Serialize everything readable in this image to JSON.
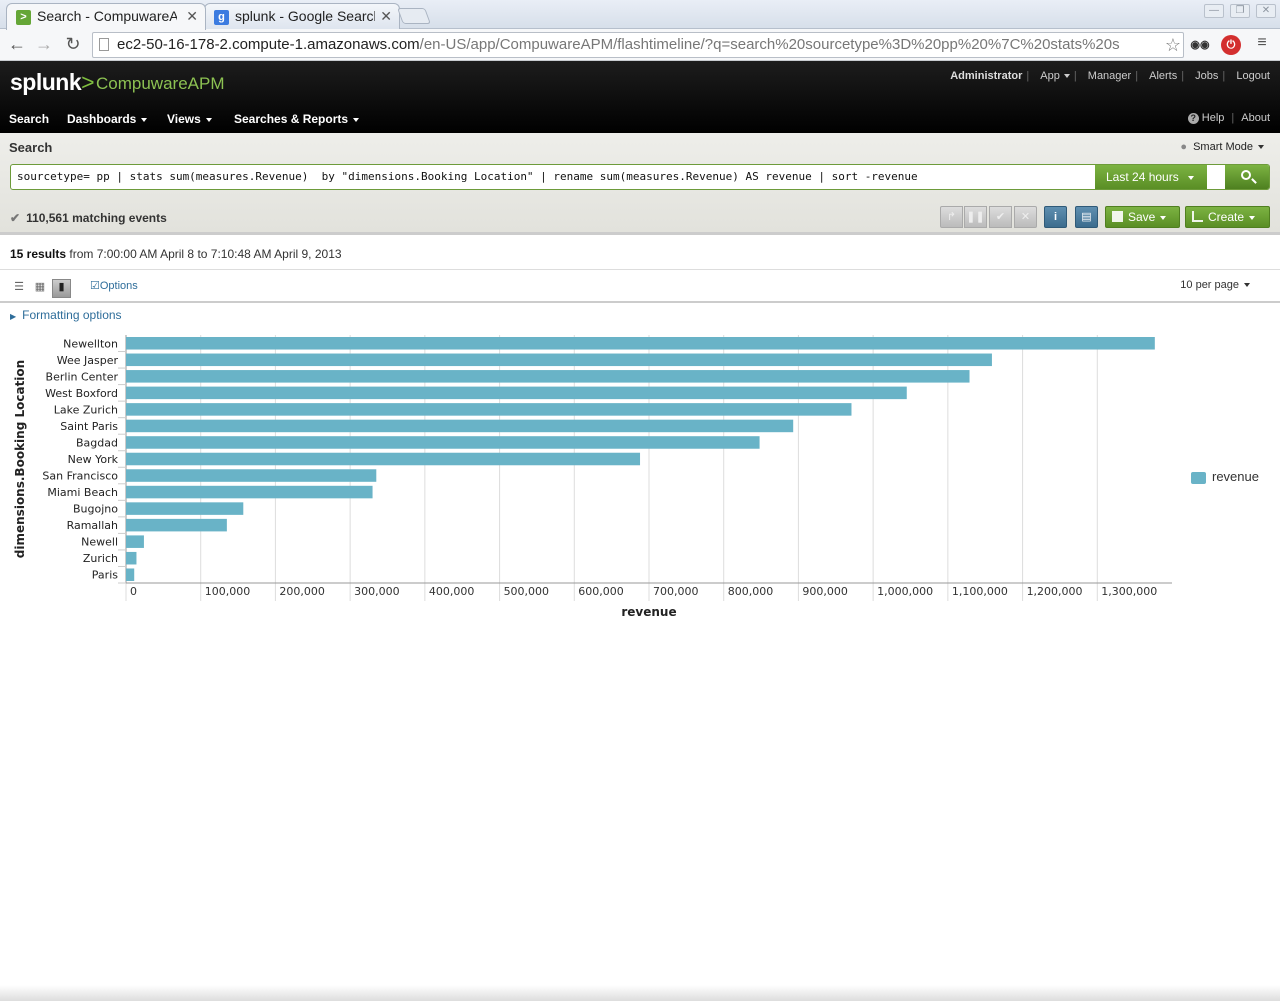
{
  "browser": {
    "tabs": [
      {
        "label": "Search - CompuwareAI",
        "icon": "splunk-app-icon",
        "active": true
      },
      {
        "label": "splunk - Google Searcl",
        "icon": "google-icon",
        "active": false
      }
    ],
    "url_host": "ec2-50-16-178-2.compute-1.amazonaws.com",
    "url_rest": "/en-US/app/CompuwareAPM/flashtimeline/?q=search%20sourcetype%3D%20pp%20%7C%20stats%20s"
  },
  "header": {
    "logo": "splunk",
    "logo_gt": ">",
    "app_name": "CompuwareAPM",
    "user": "Administrator",
    "account_links": [
      "App",
      "Manager",
      "Alerts",
      "Jobs",
      "Logout"
    ],
    "nav": [
      "Search",
      "Dashboards",
      "Views",
      "Searches & Reports"
    ],
    "help": "Help",
    "about": "About"
  },
  "search": {
    "title": "Search",
    "mode": "Smart Mode",
    "query": "sourcetype= pp | stats sum(measures.Revenue)  by \"dimensions.Booking Location\" | rename sum(measures.Revenue) AS revenue | sort -revenue",
    "time_range": "Last 24 hours",
    "matching": "110,561 matching events",
    "save_label": "Save",
    "create_label": "Create"
  },
  "results": {
    "count": "15 results",
    "range": " from 7:00:00 AM April 8 to 7:10:48 AM April 9, 2013",
    "options": "Options",
    "per_page": "10 per page",
    "formatting": "Formatting options"
  },
  "colors": {
    "bar": "#69b3c7",
    "accent_green": "#7cb342"
  },
  "chart_data": {
    "type": "bar",
    "orientation": "horizontal",
    "categories": [
      "Newellton",
      "Wee Jasper",
      "Berlin Center",
      "West Boxford",
      "Lake Zurich",
      "Saint Paris",
      "Bagdad",
      "New York",
      "San Francisco",
      "Miami Beach",
      "Bugojno",
      "Ramallah",
      "Newell",
      "Zurich",
      "Paris"
    ],
    "series": [
      {
        "name": "revenue",
        "values": [
          1377000,
          1159000,
          1129000,
          1045000,
          971000,
          893000,
          848000,
          688000,
          335000,
          330000,
          157000,
          135000,
          24000,
          14000,
          11000
        ]
      }
    ],
    "xlabel": "revenue",
    "ylabel": "dimensions.Booking Location",
    "xlim": [
      0,
      1400000
    ],
    "xticks": [
      "0",
      "100,000",
      "200,000",
      "300,000",
      "400,000",
      "500,000",
      "600,000",
      "700,000",
      "800,000",
      "900,000",
      "1,000,000",
      "1,100,000",
      "1,200,000",
      "1,300,000"
    ],
    "grid": true,
    "legend": "right"
  }
}
